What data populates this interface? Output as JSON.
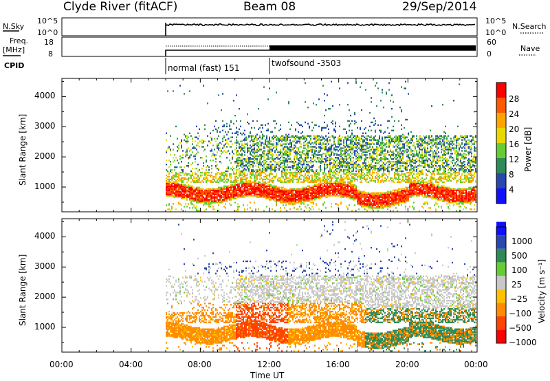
{
  "header": {
    "station": "Clyde River (fitACF)",
    "beam": "Beam 08",
    "date": "29/Sep/2014"
  },
  "strips": {
    "nsky_label": "N.Sky",
    "nsky_ticks": [
      "10^5",
      "10^0"
    ],
    "nsearch_label": "N.Search",
    "nsearch_ticks": [
      "10^5",
      "10^0"
    ],
    "freq_label": "Freq.",
    "freq_unit": "[MHz]",
    "freq_ticks": [
      "18",
      "8"
    ],
    "nave_label": "Nave",
    "nave_ticks": [
      "60",
      "0"
    ],
    "cpid_label": "CPID",
    "cpid_modes": [
      {
        "name": "normal (fast) 151",
        "start_hour": 6
      },
      {
        "name": "twofsound -3503",
        "start_hour": 12
      }
    ]
  },
  "colors": {
    "power": [
      "#1010ff",
      "#2848b0",
      "#2e8b57",
      "#66cc33",
      "#e8d800",
      "#ffa500",
      "#ff5a00",
      "#ff0000"
    ],
    "velocity": [
      "#ff0000",
      "#ff4400",
      "#ff8c00",
      "#ffc000",
      "#c8c8c8",
      "#66cc33",
      "#2e8b57",
      "#2848b0",
      "#1010ff"
    ]
  },
  "chart_data": [
    {
      "type": "heatmap",
      "name": "power",
      "xlabel": "",
      "ylabel": "Slant Range [km]",
      "xlim": [
        "00:00",
        "00:00"
      ],
      "ylim": [
        180,
        4600
      ],
      "yticks": [
        "1000",
        "2000",
        "3000",
        "4000"
      ],
      "colorbar_label": "Power [dB]",
      "colorbar_ticks": [
        "4",
        "8",
        "12",
        "16",
        "20",
        "24",
        "28"
      ]
    },
    {
      "type": "heatmap",
      "name": "velocity",
      "xlabel": "Time UT",
      "ylabel": "Slant Range [km]",
      "xlim": [
        "00:00",
        "00:00"
      ],
      "ylim": [
        180,
        4600
      ],
      "xticks": [
        "00:00",
        "04:00",
        "08:00",
        "12:00",
        "16:00",
        "20:00",
        "00:00"
      ],
      "yticks": [
        "1000",
        "2000",
        "3000",
        "4000"
      ],
      "colorbar_label": "Velocity [m s⁻¹]",
      "colorbar_ticks": [
        "1000",
        "500",
        "100",
        "25",
        "−25",
        "−100",
        "−500",
        "−1000"
      ]
    }
  ]
}
